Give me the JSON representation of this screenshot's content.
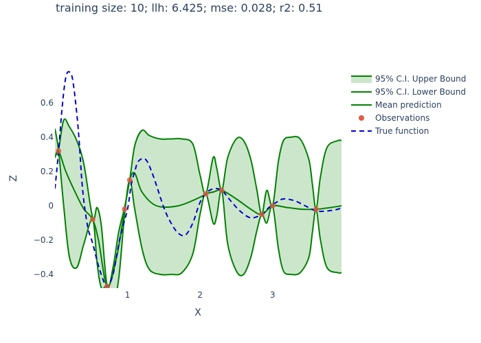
{
  "title": "training size: 10; llh: 6.425; mse: 0.028; r2: 0.51",
  "chart_data": {
    "type": "line",
    "xlabel": "X",
    "ylabel": "Z",
    "xlim": [
      0,
      3.95
    ],
    "ylim": [
      -0.48,
      0.8
    ],
    "xticks": [
      1,
      2,
      3
    ],
    "xtick_labels": [
      "1",
      "2",
      "3"
    ],
    "yticks": [
      -0.4,
      -0.2,
      0,
      0.2,
      0.4,
      0.6
    ],
    "ytick_labels": [
      "−0.4",
      "−0.2",
      "0",
      "0.2",
      "0.4",
      "0.6"
    ],
    "grid": false,
    "legend_position": "right",
    "observations": {
      "name": "Observations",
      "color": "#e15a43",
      "x": [
        0.05,
        0.52,
        0.72,
        0.96,
        1.03,
        2.08,
        2.3,
        2.85,
        3.0,
        3.6
      ],
      "y": [
        0.32,
        -0.08,
        -0.47,
        -0.02,
        0.15,
        0.07,
        0.09,
        -0.05,
        0.0,
        -0.02
      ]
    },
    "series": [
      {
        "name": "95% C.I. Upper Bound",
        "color": "#008000",
        "fill": "rgba(0,128,0,0.2)",
        "x": [
          0,
          0.05,
          0.12,
          0.2,
          0.3,
          0.4,
          0.52,
          0.58,
          0.64,
          0.72,
          0.8,
          0.88,
          0.96,
          1.03,
          1.1,
          1.2,
          1.3,
          1.45,
          1.6,
          1.75,
          1.9,
          2.0,
          2.08,
          2.18,
          2.23,
          2.3,
          2.38,
          2.5,
          2.6,
          2.7,
          2.78,
          2.85,
          2.92,
          3.0,
          3.08,
          3.15,
          3.25,
          3.38,
          3.5,
          3.55,
          3.6,
          3.66,
          3.75,
          3.9,
          3.95
        ],
        "values": [
          0.29,
          0.33,
          0.5,
          0.46,
          0.38,
          0.24,
          -0.07,
          -0.01,
          -0.12,
          -0.47,
          -0.36,
          -0.15,
          -0.01,
          0.15,
          0.35,
          0.44,
          0.41,
          0.39,
          0.39,
          0.39,
          0.36,
          0.18,
          0.07,
          0.28,
          0.22,
          0.09,
          0.28,
          0.39,
          0.38,
          0.27,
          0.1,
          -0.05,
          0.09,
          0.0,
          0.26,
          0.38,
          0.4,
          0.39,
          0.27,
          0.12,
          -0.02,
          0.17,
          0.34,
          0.38,
          0.38
        ]
      },
      {
        "name": "95% C.I. Lower Bound",
        "color": "#008000",
        "x": [
          0,
          0.05,
          0.12,
          0.2,
          0.3,
          0.4,
          0.52,
          0.58,
          0.64,
          0.72,
          0.8,
          0.88,
          0.96,
          1.03,
          1.1,
          1.2,
          1.3,
          1.45,
          1.6,
          1.75,
          1.9,
          2.0,
          2.08,
          2.18,
          2.23,
          2.3,
          2.38,
          2.5,
          2.6,
          2.7,
          2.78,
          2.85,
          2.92,
          3.0,
          3.08,
          3.15,
          3.25,
          3.38,
          3.5,
          3.55,
          3.6,
          3.66,
          3.75,
          3.9,
          3.95
        ],
        "values": [
          0.45,
          0.32,
          0.0,
          -0.3,
          -0.36,
          -0.22,
          -0.08,
          -0.33,
          -0.48,
          -0.47,
          -0.58,
          -0.42,
          -0.05,
          0.15,
          -0.02,
          -0.25,
          -0.37,
          -0.4,
          -0.4,
          -0.39,
          -0.28,
          -0.05,
          0.07,
          -0.1,
          -0.06,
          0.09,
          -0.22,
          -0.38,
          -0.4,
          -0.3,
          -0.15,
          -0.05,
          -0.1,
          0.0,
          -0.25,
          -0.38,
          -0.4,
          -0.39,
          -0.3,
          -0.15,
          -0.02,
          -0.2,
          -0.36,
          -0.39,
          -0.39
        ]
      },
      {
        "name": "Mean prediction",
        "color": "#008000",
        "x": [
          0,
          0.05,
          0.15,
          0.3,
          0.4,
          0.52,
          0.6,
          0.72,
          0.85,
          0.96,
          1.03,
          1.1,
          1.2,
          1.4,
          1.7,
          2.0,
          2.08,
          2.18,
          2.3,
          2.5,
          2.7,
          2.85,
          3.0,
          3.2,
          3.4,
          3.6,
          3.8,
          3.95
        ],
        "values": [
          0.28,
          0.32,
          0.2,
          0.06,
          -0.02,
          -0.08,
          -0.2,
          -0.47,
          -0.3,
          -0.02,
          0.15,
          0.19,
          0.08,
          0.0,
          0.0,
          0.05,
          0.07,
          0.08,
          0.09,
          0.04,
          -0.02,
          -0.05,
          0.0,
          -0.01,
          -0.02,
          -0.02,
          -0.01,
          0.0
        ]
      },
      {
        "name": "True function",
        "color": "#0000cc",
        "dash": true,
        "x": [
          0,
          0.05,
          0.1,
          0.15,
          0.2,
          0.25,
          0.32,
          0.38,
          0.45,
          0.52,
          0.6,
          0.68,
          0.72,
          0.8,
          0.9,
          1.0,
          1.05,
          1.1,
          1.15,
          1.25,
          1.35,
          1.5,
          1.6,
          1.7,
          1.8,
          1.9,
          2.0,
          2.1,
          2.2,
          2.3,
          2.4,
          2.55,
          2.7,
          2.85,
          2.95,
          3.05,
          3.15,
          3.3,
          3.45,
          3.6,
          3.75,
          3.9,
          3.95
        ],
        "values": [
          0.1,
          0.32,
          0.58,
          0.75,
          0.78,
          0.72,
          0.45,
          0.1,
          -0.12,
          -0.22,
          -0.35,
          -0.45,
          -0.47,
          -0.4,
          -0.18,
          -0.02,
          0.12,
          0.2,
          0.26,
          0.27,
          0.18,
          -0.01,
          -0.1,
          -0.16,
          -0.17,
          -0.1,
          0.02,
          0.08,
          0.1,
          0.09,
          0.04,
          -0.03,
          -0.07,
          -0.05,
          -0.01,
          0.02,
          0.04,
          0.03,
          0.0,
          -0.03,
          -0.03,
          -0.02,
          -0.01
        ]
      }
    ]
  }
}
